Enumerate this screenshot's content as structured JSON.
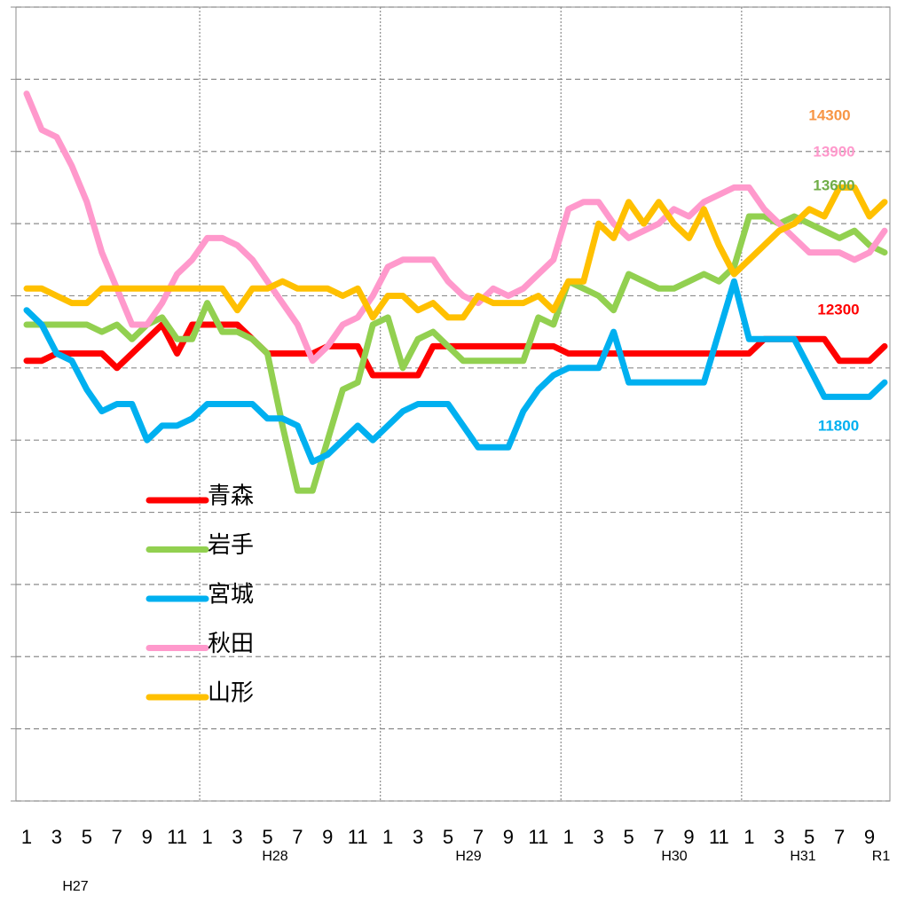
{
  "chart_data": {
    "type": "line",
    "categories": [
      "1",
      null,
      "3",
      null,
      "5",
      null,
      "7",
      null,
      "9",
      null,
      "11",
      null,
      "1",
      null,
      "3",
      null,
      "5",
      null,
      "7",
      null,
      "9",
      null,
      "11",
      null,
      "1",
      null,
      "3",
      null,
      "5",
      null,
      "7",
      null,
      "9",
      null,
      "11",
      null,
      "1",
      null,
      "3",
      null,
      "5",
      null,
      "7",
      null,
      "9",
      null,
      "11",
      null,
      "1",
      null,
      "3",
      null,
      "5",
      null,
      "7",
      null,
      "9",
      null
    ],
    "year_labels": [
      "H27",
      "H28",
      "H29",
      "H30",
      "H31",
      "R1"
    ],
    "ylim": [
      6000,
      17000
    ],
    "yticks": [
      6000,
      7000,
      8000,
      9000,
      10000,
      11000,
      12000,
      13000,
      14000,
      15000,
      16000,
      17000
    ],
    "grid": true,
    "legend": "left",
    "series": [
      {
        "name": "青森",
        "color": "#ff0000",
        "label_color": "#ff0000",
        "values": [
          12100,
          12100,
          12200,
          12200,
          12200,
          12200,
          12000,
          12200,
          12400,
          12600,
          12200,
          12600,
          12600,
          12600,
          12600,
          12400,
          12200,
          12200,
          12200,
          12200,
          12300,
          12300,
          12300,
          11900,
          11900,
          11900,
          11900,
          12300,
          12300,
          12300,
          12300,
          12300,
          12300,
          12300,
          12300,
          12300,
          12200,
          12200,
          12200,
          12200,
          12200,
          12200,
          12200,
          12200,
          12200,
          12200,
          12200,
          12200,
          12200,
          12400,
          12400,
          12400,
          12400,
          12400,
          12100,
          12100,
          12100,
          12300
        ]
      },
      {
        "name": "岩手",
        "color": "#92d050",
        "label_color": "#70ad47",
        "values": [
          12600,
          12600,
          12600,
          12600,
          12600,
          12500,
          12600,
          12400,
          12600,
          12700,
          12400,
          12400,
          12900,
          12500,
          12500,
          12400,
          12200,
          11200,
          10300,
          10300,
          11000,
          11700,
          11800,
          12600,
          12700,
          12000,
          12400,
          12500,
          12300,
          12100,
          12100,
          12100,
          12100,
          12100,
          12700,
          12600,
          13200,
          13100,
          13000,
          12800,
          13300,
          13200,
          13100,
          13100,
          13200,
          13300,
          13200,
          13400,
          14100,
          14100,
          14000,
          14100,
          14000,
          13900,
          13800,
          13900,
          13700,
          13600
        ]
      },
      {
        "name": "宮城",
        "color": "#00b0f0",
        "label_color": "#00b0f0",
        "values": [
          12800,
          12600,
          12200,
          12100,
          11700,
          11400,
          11500,
          11500,
          11000,
          11200,
          11200,
          11300,
          11500,
          11500,
          11500,
          11500,
          11300,
          11300,
          11200,
          10700,
          10800,
          11000,
          11200,
          11000,
          11200,
          11400,
          11500,
          11500,
          11500,
          11200,
          10900,
          10900,
          10900,
          11400,
          11700,
          11900,
          12000,
          12000,
          12000,
          12500,
          11800,
          11800,
          11800,
          11800,
          11800,
          11800,
          12500,
          13200,
          12400,
          12400,
          12400,
          12400,
          12000,
          11600,
          11600,
          11600,
          11600,
          11800
        ]
      },
      {
        "name": "秋田",
        "color": "#ff99cc",
        "label_color": "#ff99cc",
        "values": [
          15800,
          15300,
          15200,
          14800,
          14300,
          13600,
          13100,
          12600,
          12600,
          12900,
          13300,
          13500,
          13800,
          13800,
          13700,
          13500,
          13200,
          12900,
          12600,
          12100,
          12300,
          12600,
          12700,
          13000,
          13400,
          13500,
          13500,
          13500,
          13200,
          13000,
          12900,
          13100,
          13000,
          13100,
          13300,
          13500,
          14200,
          14300,
          14300,
          14000,
          13800,
          13900,
          14000,
          14200,
          14100,
          14300,
          14400,
          14500,
          14500,
          14200,
          14000,
          13800,
          13600,
          13600,
          13600,
          13500,
          13600,
          13900
        ]
      },
      {
        "name": "山形",
        "color": "#ffc000",
        "label_color": "#f79646",
        "values": [
          13100,
          13100,
          13000,
          12900,
          12900,
          13100,
          13100,
          13100,
          13100,
          13100,
          13100,
          13100,
          13100,
          13100,
          12800,
          13100,
          13100,
          13200,
          13100,
          13100,
          13100,
          13000,
          13100,
          12700,
          13000,
          13000,
          12800,
          12900,
          12700,
          12700,
          13000,
          12900,
          12900,
          12900,
          13000,
          12800,
          13200,
          13200,
          14000,
          13800,
          14300,
          14000,
          14300,
          14000,
          13800,
          14200,
          13700,
          13300,
          13500,
          13700,
          13900,
          14000,
          14200,
          14100,
          14500,
          14500,
          14100,
          14300
        ]
      }
    ]
  }
}
